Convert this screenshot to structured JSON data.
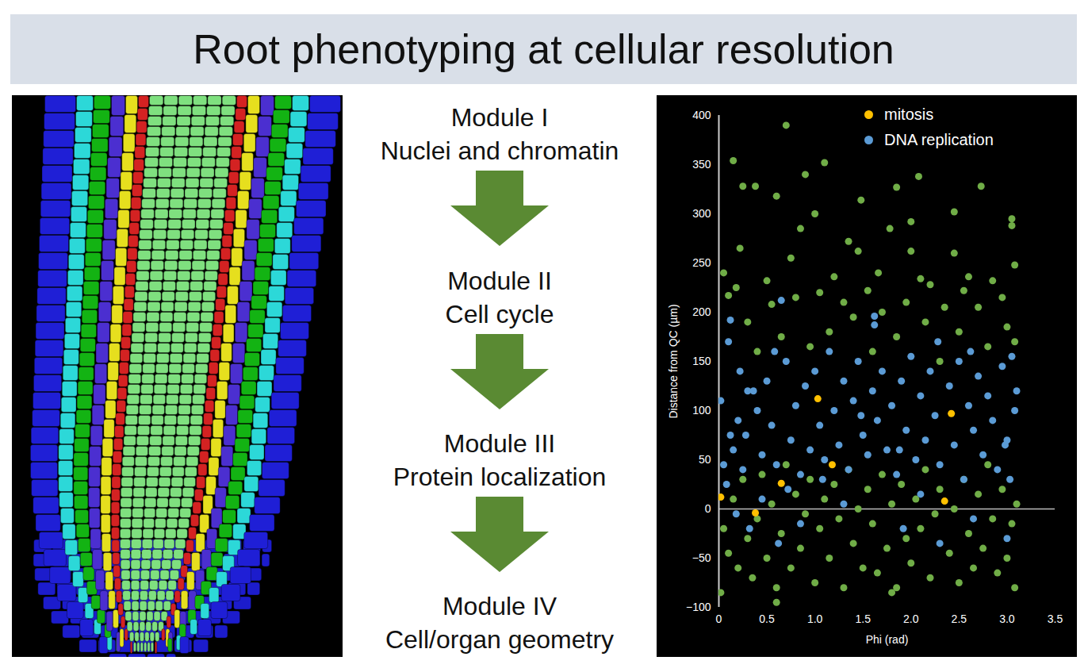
{
  "title": "Root phenotyping at cellular resolution",
  "modules": [
    {
      "label": "Module I",
      "text": "Nuclei and chromatin"
    },
    {
      "label": "Module II",
      "text": "Cell cycle"
    },
    {
      "label": "Module III",
      "text": "Protein localization"
    },
    {
      "label": "Module IV",
      "text": "Cell/organ geometry"
    }
  ],
  "chart_data": {
    "type": "scatter",
    "x_label": "Phi (rad)",
    "y_label": "Distance from QC (µm)",
    "xlim": [
      0,
      3.5
    ],
    "xticks": [
      0,
      0.5,
      {
        "value": 1,
        "label": "1.0"
      },
      1.5,
      {
        "value": 2,
        "label": "2.0"
      },
      2.5,
      {
        "value": 3,
        "label": "3.0"
      },
      3.5
    ],
    "ylim": [
      -100,
      400
    ],
    "yticks": [
      {
        "value": -100,
        "label": "−100"
      },
      {
        "value": -50,
        "label": "−50"
      },
      0,
      50,
      100,
      150,
      200,
      250,
      300,
      350,
      400
    ],
    "legend": "top-right",
    "series": [
      {
        "name": "mitosis",
        "color": "#ffc000",
        "x": [
          0.02,
          0.38,
          0.65,
          1.03,
          1.18,
          2.35,
          2.42
        ],
        "values": [
          12,
          -4,
          26,
          112,
          45,
          8,
          97
        ]
      },
      {
        "name": "DNA replication",
        "color": "#5b9bd5",
        "x": [
          0.02,
          0.12,
          0.1,
          0.65,
          0.3,
          0.36,
          1.62,
          1.62,
          0.05,
          0.08,
          0.15,
          0.2,
          0.25,
          0.28,
          0.4,
          0.45,
          0.5,
          0.55,
          0.6,
          0.7,
          0.75,
          0.8,
          0.85,
          0.9,
          0.95,
          1.0,
          1.05,
          1.1,
          1.15,
          1.2,
          1.25,
          1.3,
          1.35,
          1.4,
          1.45,
          1.5,
          1.55,
          1.6,
          1.65,
          1.7,
          1.75,
          1.8,
          1.85,
          1.9,
          1.95,
          2.0,
          2.05,
          2.1,
          2.15,
          2.2,
          2.25,
          2.3,
          2.4,
          2.45,
          2.5,
          2.55,
          2.6,
          2.65,
          2.7,
          2.75,
          2.8,
          2.85,
          2.9,
          2.95,
          3.0,
          3.05,
          3.08,
          3.1,
          3.03,
          0.18,
          0.32,
          0.62,
          1.92,
          2.3,
          3.0,
          1.3,
          0.85,
          2.65,
          0.45,
          2.1,
          0.22,
          0.58,
          1.08,
          1.48,
          1.88,
          2.28,
          2.62,
          2.98,
          0.12,
          0.72
        ],
        "values": [
          110,
          192,
          170,
          212,
          120,
          120,
          196,
          187,
          45,
          25,
          60,
          90,
          40,
          75,
          100,
          55,
          130,
          85,
          45,
          150,
          70,
          105,
          35,
          125,
          60,
          140,
          85,
          50,
          160,
          100,
          65,
          130,
          40,
          110,
          150,
          75,
          55,
          120,
          90,
          140,
          60,
          105,
          35,
          130,
          80,
          155,
          50,
          115,
          70,
          140,
          95,
          45,
          125,
          65,
          150,
          30,
          105,
          80,
          135,
          55,
          115,
          90,
          40,
          145,
          70,
          155,
          100,
          120,
          30,
          -5,
          -20,
          -35,
          -20,
          -35,
          -30,
          5,
          -15,
          -10,
          10,
          15,
          140,
          160,
          30,
          95,
          60,
          170,
          160,
          65,
          75,
          20
        ]
      },
      {
        "color": "#70ad47",
        "x": [
          0.7,
          0.15,
          1.1,
          0.38,
          0.25,
          0.9,
          1.48,
          1.35,
          1.85,
          2.08,
          2.73,
          0.6,
          0.75,
          0.05,
          0.22,
          1.0,
          0.85,
          1.2,
          1.45,
          1.66,
          1.78,
          2.0,
          2.0,
          2.1,
          2.45,
          2.45,
          2.6,
          2.85,
          3.05,
          3.05,
          3.08,
          0.1,
          0.18,
          0.5,
          0.55,
          0.8,
          1.05,
          1.3,
          1.55,
          1.7,
          1.95,
          2.2,
          2.35,
          2.55,
          2.7,
          2.95,
          3.0,
          0.3,
          0.65,
          1.15,
          1.4,
          1.85,
          2.15,
          2.5,
          2.8,
          3.08,
          0.4,
          0.95,
          1.6,
          2.3,
          0.02,
          0.05,
          0.1,
          0.15,
          0.2,
          0.25,
          0.3,
          0.35,
          0.4,
          0.45,
          0.5,
          0.55,
          0.6,
          0.65,
          0.7,
          0.75,
          0.8,
          0.85,
          0.9,
          0.95,
          1.0,
          1.05,
          1.1,
          1.15,
          1.2,
          1.25,
          1.3,
          1.35,
          1.4,
          1.45,
          1.5,
          1.55,
          1.6,
          1.65,
          1.7,
          1.75,
          1.8,
          1.85,
          1.9,
          1.95,
          2.0,
          2.05,
          2.1,
          2.15,
          2.2,
          2.25,
          2.3,
          2.4,
          2.45,
          2.5,
          2.55,
          2.6,
          2.65,
          2.7,
          2.75,
          2.8,
          2.85,
          2.9,
          2.95,
          3.0,
          3.05,
          3.08,
          3.1,
          0.6,
          1.8
        ],
        "values": [
          390,
          354,
          352,
          328,
          328,
          340,
          314,
          272,
          327,
          338,
          328,
          318,
          255,
          240,
          265,
          300,
          285,
          236,
          262,
          240,
          285,
          292,
          262,
          234,
          302,
          260,
          236,
          232,
          295,
          288,
          248,
          217,
          225,
          232,
          208,
          215,
          220,
          210,
          222,
          200,
          210,
          228,
          205,
          222,
          205,
          215,
          185,
          190,
          175,
          180,
          195,
          175,
          190,
          180,
          165,
          170,
          160,
          165,
          160,
          150,
          -85,
          -20,
          -45,
          10,
          -60,
          30,
          -30,
          -70,
          -10,
          35,
          -50,
          5,
          -80,
          -25,
          45,
          -60,
          15,
          -40,
          -5,
          30,
          -75,
          -20,
          10,
          -50,
          25,
          -10,
          -80,
          40,
          -35,
          0,
          -60,
          20,
          -15,
          -65,
          35,
          -40,
          5,
          -80,
          25,
          -30,
          -55,
          10,
          -20,
          40,
          -70,
          -5,
          20,
          -45,
          0,
          -75,
          30,
          -25,
          -60,
          15,
          -40,
          45,
          -10,
          -65,
          20,
          -50,
          -15,
          -80,
          5,
          -95,
          -85
        ]
      }
    ]
  }
}
